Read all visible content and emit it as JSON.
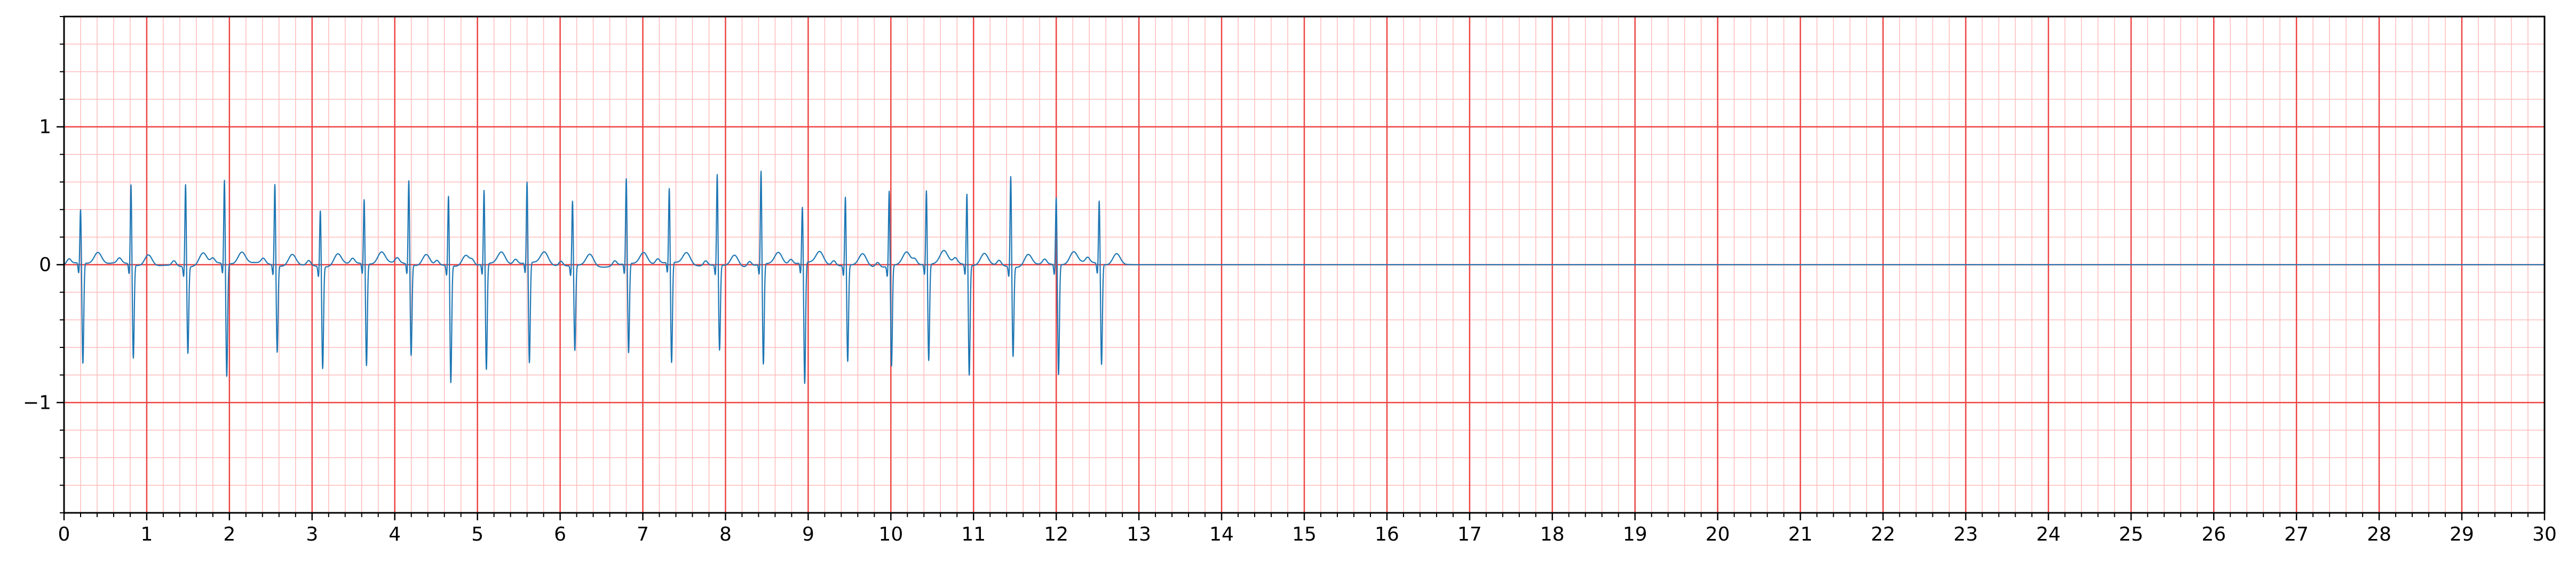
{
  "chart_data": {
    "type": "line",
    "title": "",
    "xlabel": "",
    "ylabel": "",
    "xlim": [
      0,
      30
    ],
    "ylim": [
      -1.8,
      1.8
    ],
    "x_ticks": [
      0,
      1,
      2,
      3,
      4,
      5,
      6,
      7,
      8,
      9,
      10,
      11,
      12,
      13,
      14,
      15,
      16,
      17,
      18,
      19,
      20,
      21,
      22,
      23,
      24,
      25,
      26,
      27,
      28,
      29,
      30
    ],
    "x_tick_labels": [
      "0",
      "1",
      "2",
      "3",
      "4",
      "5",
      "6",
      "7",
      "8",
      "9",
      "10",
      "11",
      "12",
      "13",
      "14",
      "15",
      "16",
      "17",
      "18",
      "19",
      "20",
      "21",
      "22",
      "23",
      "24",
      "25",
      "26",
      "27",
      "28",
      "29",
      "30"
    ],
    "y_ticks": [
      -1,
      0,
      1
    ],
    "y_tick_labels": [
      "−1",
      "0",
      "1"
    ],
    "grid": {
      "major": true,
      "minor": true,
      "major_x_step": 1,
      "minor_x_step": 0.2,
      "major_y_step": 1,
      "minor_y_step": 0.2,
      "major_color": "#ee4444",
      "minor_color": "#ffbbbb"
    },
    "line_color": "#1f77b4",
    "signal_end_x": 12.95,
    "beats": [
      {
        "t": 0.2,
        "r": 0.4,
        "s": -0.73
      },
      {
        "t": 0.81,
        "r": 0.59,
        "s": -0.68
      },
      {
        "t": 1.47,
        "r": 0.61,
        "s": -0.63
      },
      {
        "t": 1.94,
        "r": 0.62,
        "s": -0.82
      },
      {
        "t": 2.55,
        "r": 0.6,
        "s": -0.63
      },
      {
        "t": 3.1,
        "r": 0.42,
        "s": -0.74
      },
      {
        "t": 3.63,
        "r": 0.48,
        "s": -0.74
      },
      {
        "t": 4.17,
        "r": 0.62,
        "s": -0.66
      },
      {
        "t": 4.65,
        "r": 0.52,
        "s": -0.85
      },
      {
        "t": 5.08,
        "r": 0.55,
        "s": -0.77
      },
      {
        "t": 5.6,
        "r": 0.6,
        "s": -0.73
      },
      {
        "t": 6.15,
        "r": 0.48,
        "s": -0.62
      },
      {
        "t": 6.8,
        "r": 0.63,
        "s": -0.65
      },
      {
        "t": 7.32,
        "r": 0.55,
        "s": -0.73
      },
      {
        "t": 7.9,
        "r": 0.67,
        "s": -0.62
      },
      {
        "t": 8.43,
        "r": 0.69,
        "s": -0.73
      },
      {
        "t": 8.93,
        "r": 0.42,
        "s": -0.88
      },
      {
        "t": 9.45,
        "r": 0.51,
        "s": -0.7
      },
      {
        "t": 9.98,
        "r": 0.56,
        "s": -0.73
      },
      {
        "t": 10.43,
        "r": 0.55,
        "s": -0.7
      },
      {
        "t": 10.92,
        "r": 0.53,
        "s": -0.8
      },
      {
        "t": 11.45,
        "r": 0.67,
        "s": -0.65
      },
      {
        "t": 12.0,
        "r": 0.5,
        "s": -0.8
      },
      {
        "t": 12.52,
        "r": 0.47,
        "s": -0.73
      }
    ]
  }
}
